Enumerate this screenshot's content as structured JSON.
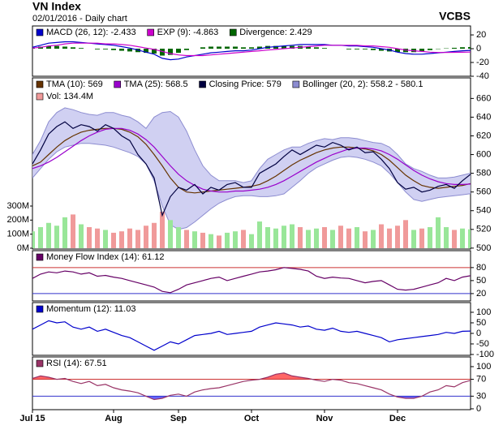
{
  "header": {
    "title": "VN Index",
    "subtitle": "02/01/2016 - Daily chart",
    "source": "VCBS"
  },
  "chart_data": [
    {
      "type": "macd",
      "ylim": [
        -40,
        33
      ],
      "yticks": [
        20,
        0,
        -20,
        -40
      ],
      "series": [
        {
          "name": "MACD (26, 12): -2.433",
          "type": "line",
          "color": "#0000cc",
          "values": [
            2,
            5,
            8,
            9,
            10,
            10,
            9,
            8,
            7,
            6,
            5,
            3,
            1,
            -2,
            -5,
            -8,
            -14,
            -16,
            -15,
            -12,
            -10,
            -8,
            -6,
            -5,
            -4,
            -3,
            -3,
            -2,
            0,
            2,
            3,
            4,
            5,
            6,
            6,
            6,
            6,
            5,
            5,
            4,
            4,
            3,
            2,
            0,
            -2,
            -5,
            -7,
            -8,
            -8,
            -7,
            -6,
            -5,
            -4,
            -3,
            -2.433
          ]
        },
        {
          "name": "EXP (9): -4.863",
          "type": "line",
          "color": "#cc00cc",
          "values": [
            1,
            2,
            4,
            5,
            7,
            8,
            8,
            8,
            8,
            7,
            7,
            6,
            5,
            3,
            1,
            -1,
            -4,
            -7,
            -9,
            -10,
            -10,
            -10,
            -9,
            -8,
            -7,
            -6,
            -5,
            -4,
            -3,
            -2,
            -1,
            0,
            1,
            2,
            3,
            4,
            5,
            5,
            5,
            5,
            5,
            4,
            4,
            3,
            2,
            0,
            -2,
            -3,
            -4,
            -5,
            -5.5,
            -5.5,
            -5.3,
            -5.1,
            -4.863
          ]
        },
        {
          "name": "Divergence: 2.429",
          "type": "bar",
          "color": "#006600",
          "values": [
            1,
            3,
            4,
            4,
            3,
            2,
            1,
            0,
            -1,
            -1,
            -2,
            -3,
            -4,
            -5,
            -6,
            -7,
            -10,
            -9,
            -6,
            -2,
            0,
            2,
            3,
            3,
            3,
            3,
            2,
            2,
            3,
            4,
            4,
            4,
            4,
            4,
            3,
            2,
            1,
            0,
            0,
            -1,
            -1,
            -1,
            -2,
            -3,
            -4,
            -5,
            -5,
            -5,
            -4,
            -2,
            -0.5,
            0.5,
            1.3,
            2.1,
            2.429
          ]
        }
      ]
    },
    {
      "type": "price",
      "ylim": [
        499,
        682
      ],
      "yticks": [
        500,
        520,
        540,
        560,
        580,
        600,
        620,
        640,
        660
      ],
      "y2lim": [
        -6,
        1212
      ],
      "y2ticks": [
        {
          "value": 0,
          "label": "0M"
        },
        {
          "value": 100,
          "label": "100M"
        },
        {
          "value": 200,
          "label": "200M"
        },
        {
          "value": 300,
          "label": "300M"
        }
      ],
      "series": [
        {
          "name": "TMA (10): 569",
          "type": "line",
          "color": "#663300",
          "values": [
            588,
            592,
            600,
            608,
            615,
            620,
            624,
            626,
            627,
            628,
            628,
            627,
            624,
            619,
            611,
            600,
            588,
            575,
            565,
            560,
            559,
            560,
            561,
            562,
            563,
            564,
            565,
            566,
            568,
            572,
            577,
            583,
            589,
            594,
            598,
            602,
            605,
            607,
            608,
            608,
            607,
            606,
            604,
            600,
            594,
            586,
            578,
            572,
            567,
            565,
            564,
            565,
            566,
            567,
            569
          ]
        },
        {
          "name": "TMA (25): 568.5",
          "type": "line",
          "color": "#9900cc",
          "values": [
            585,
            588,
            592,
            597,
            603,
            609,
            615,
            620,
            624,
            627,
            628,
            628,
            626,
            622,
            616,
            608,
            598,
            588,
            579,
            572,
            567,
            563,
            561,
            560,
            560,
            561,
            561,
            562,
            563,
            565,
            568,
            572,
            577,
            582,
            587,
            592,
            596,
            600,
            603,
            606,
            607,
            607,
            606,
            604,
            600,
            595,
            589,
            583,
            578,
            574,
            571,
            569,
            568,
            568,
            568.5
          ]
        },
        {
          "name": "Closing Price: 579",
          "type": "line",
          "color": "#000040",
          "values": [
            590,
            605,
            622,
            630,
            635,
            628,
            632,
            630,
            625,
            632,
            628,
            620,
            615,
            600,
            590,
            575,
            535,
            555,
            565,
            562,
            568,
            558,
            565,
            562,
            568,
            570,
            565,
            565,
            580,
            585,
            590,
            598,
            605,
            600,
            605,
            610,
            608,
            613,
            610,
            605,
            608,
            602,
            603,
            595,
            585,
            570,
            563,
            565,
            560,
            562,
            566,
            568,
            564,
            572,
            579
          ]
        },
        {
          "name": "Bollinger (20, 2): 558.2 - 580.1",
          "type": "band",
          "color": "#8c8cd0",
          "fill": "#c8c8f0",
          "upper": [
            600,
            615,
            635,
            645,
            650,
            648,
            645,
            643,
            642,
            645,
            645,
            642,
            640,
            635,
            628,
            640,
            645,
            646,
            640,
            625,
            605,
            588,
            578,
            572,
            572,
            572,
            570,
            572,
            585,
            595,
            600,
            605,
            608,
            608,
            612,
            615,
            617,
            616,
            618,
            618,
            617,
            615,
            613,
            612,
            608,
            600,
            590,
            585,
            582,
            578,
            575,
            575,
            576,
            578,
            580.1
          ],
          "lower": [
            575,
            585,
            595,
            603,
            608,
            610,
            612,
            612,
            611,
            610,
            608,
            605,
            602,
            598,
            590,
            572,
            545,
            525,
            520,
            522,
            528,
            535,
            542,
            548,
            552,
            555,
            556,
            556,
            555,
            555,
            556,
            558,
            565,
            572,
            580,
            586,
            590,
            594,
            597,
            598,
            597,
            595,
            592,
            588,
            580,
            570,
            560,
            552,
            550,
            552,
            554,
            555,
            556,
            557,
            558.2
          ]
        },
        {
          "name": "Vol: 134.4M",
          "type": "bar",
          "axis": "y2",
          "color": "#f09a9a",
          "values": [
            120,
            150,
            180,
            160,
            220,
            240,
            170,
            150,
            140,
            130,
            110,
            120,
            140,
            130,
            160,
            180,
            260,
            200,
            150,
            130,
            120,
            110,
            100,
            90,
            110,
            120,
            130,
            100,
            190,
            150,
            140,
            160,
            170,
            150,
            130,
            140,
            150,
            130,
            160,
            140,
            150,
            120,
            130,
            170,
            140,
            160,
            200,
            130,
            140,
            150,
            220,
            150,
            130,
            140,
            134.4
          ],
          "colors": [
            "#99e699",
            "#99e699",
            "#99e699",
            "#99e699",
            "#99e699",
            "#f09a9a",
            "#99e699",
            "#f09a9a",
            "#f09a9a",
            "#99e699",
            "#f09a9a",
            "#f09a9a",
            "#f09a9a",
            "#f09a9a",
            "#f09a9a",
            "#f09a9a",
            "#f09a9a",
            "#99e699",
            "#99e699",
            "#f09a9a",
            "#99e699",
            "#f09a9a",
            "#99e699",
            "#f09a9a",
            "#99e699",
            "#99e699",
            "#f09a9a",
            "#99e699",
            "#99e699",
            "#99e699",
            "#99e699",
            "#99e699",
            "#99e699",
            "#f09a9a",
            "#99e699",
            "#99e699",
            "#f09a9a",
            "#99e699",
            "#f09a9a",
            "#f09a9a",
            "#99e699",
            "#f09a9a",
            "#99e699",
            "#f09a9a",
            "#f09a9a",
            "#f09a9a",
            "#f09a9a",
            "#99e699",
            "#f09a9a",
            "#99e699",
            "#99e699",
            "#99e699",
            "#f09a9a",
            "#99e699",
            "#99e699"
          ]
        }
      ]
    },
    {
      "type": "oscillator",
      "ylim": [
        3,
        119
      ],
      "yticks": [
        80,
        50,
        20
      ],
      "ref_lines": [
        {
          "value": 80,
          "color": "#cc3333"
        },
        {
          "value": 20,
          "color": "#3333cc"
        }
      ],
      "series": [
        {
          "name": "Money Flow Index (14): 61.12",
          "type": "line",
          "color": "#660066",
          "values": [
            55,
            65,
            70,
            68,
            72,
            70,
            65,
            68,
            60,
            62,
            58,
            55,
            50,
            45,
            40,
            35,
            25,
            22,
            30,
            40,
            45,
            50,
            55,
            58,
            50,
            55,
            60,
            65,
            70,
            72,
            75,
            80,
            78,
            76,
            72,
            60,
            55,
            58,
            56,
            55,
            50,
            45,
            48,
            50,
            40,
            30,
            28,
            30,
            35,
            40,
            45,
            55,
            50,
            58,
            61.12
          ]
        }
      ]
    },
    {
      "type": "oscillator",
      "ylim": [
        -104,
        146
      ],
      "yticks": [
        100,
        50,
        0,
        -50,
        -100
      ],
      "series": [
        {
          "name": "Momentum (12): 11.03",
          "type": "line",
          "color": "#0000cc",
          "values": [
            20,
            40,
            60,
            50,
            55,
            30,
            20,
            30,
            10,
            20,
            5,
            -10,
            -20,
            -40,
            -60,
            -80,
            -60,
            -40,
            -50,
            -30,
            -10,
            -5,
            0,
            10,
            -5,
            0,
            5,
            10,
            30,
            40,
            50,
            45,
            40,
            30,
            35,
            20,
            15,
            25,
            10,
            5,
            10,
            0,
            -10,
            -20,
            -40,
            -30,
            -25,
            -20,
            -15,
            -10,
            -5,
            5,
            0,
            10,
            11.03
          ]
        }
      ]
    },
    {
      "type": "oscillator",
      "ylim": [
        -2,
        123
      ],
      "yticks": [
        100,
        70,
        30,
        0
      ],
      "ref_lines": [
        {
          "value": 70,
          "color": "#cc3333",
          "fill": "#ff6666",
          "side": "above"
        },
        {
          "value": 30,
          "color": "#3333cc",
          "fill": "#6666ff",
          "side": "below"
        }
      ],
      "categories": [
        "Jul 15",
        null,
        null,
        null,
        null,
        null,
        null,
        null,
        null,
        null,
        "Aug",
        null,
        null,
        null,
        null,
        null,
        null,
        null,
        "Sep",
        null,
        null,
        null,
        null,
        null,
        null,
        null,
        null,
        "Oct",
        null,
        null,
        null,
        null,
        null,
        null,
        null,
        null,
        "Nov",
        null,
        null,
        null,
        null,
        null,
        null,
        null,
        null,
        "Dec",
        null,
        null,
        null,
        null,
        null,
        null,
        null,
        null,
        null
      ],
      "series": [
        {
          "name": "RSI (14): 67.51",
          "type": "line",
          "color": "#993366",
          "values": [
            72,
            78,
            75,
            70,
            72,
            65,
            60,
            65,
            55,
            58,
            50,
            45,
            42,
            38,
            30,
            22,
            25,
            32,
            35,
            30,
            40,
            45,
            48,
            50,
            55,
            60,
            65,
            68,
            70,
            75,
            82,
            85,
            78,
            75,
            72,
            68,
            65,
            70,
            68,
            62,
            60,
            55,
            50,
            45,
            35,
            28,
            25,
            25,
            30,
            40,
            45,
            55,
            52,
            62,
            67.51
          ]
        }
      ]
    }
  ]
}
